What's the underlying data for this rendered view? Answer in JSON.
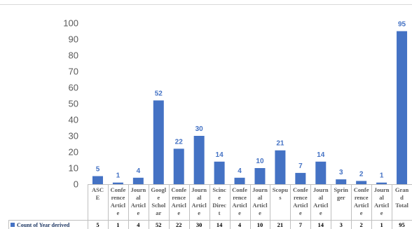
{
  "chart_data": {
    "type": "bar",
    "categories": [
      [
        "ASC",
        "E"
      ],
      [
        "Confe",
        "rence",
        "Articl",
        "e"
      ],
      [
        "Journ",
        "al",
        "Articl",
        "e"
      ],
      [
        "Googl",
        "e",
        "Schol",
        "ar"
      ],
      [
        "Confe",
        "rence",
        "Articl",
        "e"
      ],
      [
        "Journ",
        "al",
        "Articl",
        "e"
      ],
      [
        "Scinc",
        "e",
        "Direc",
        "t"
      ],
      [
        "Confe",
        "rence",
        "Articl",
        "e"
      ],
      [
        "Journ",
        "al",
        "Articl",
        "e"
      ],
      [
        "Scopu",
        "s"
      ],
      [
        "Confe",
        "rence",
        "Articl",
        "e"
      ],
      [
        "Journ",
        "al",
        "Articl",
        "e"
      ],
      [
        "Sprin",
        "ger"
      ],
      [
        "Confe",
        "rence",
        "Articl",
        "e"
      ],
      [
        "Journ",
        "al",
        "Articl",
        "e"
      ],
      [
        "Gran",
        "d",
        "Total"
      ]
    ],
    "series": [
      {
        "name": "Count of Year derived",
        "values": [
          5,
          1,
          4,
          52,
          22,
          30,
          14,
          4,
          10,
          21,
          7,
          14,
          3,
          2,
          1,
          95
        ]
      }
    ],
    "yticks": [
      "100",
      "90",
      "80",
      "70",
      "60",
      "50",
      "40",
      "30",
      "20",
      "10",
      "0"
    ],
    "ylim": [
      0,
      100
    ],
    "grid": false,
    "legend": "bottom-left data table",
    "bar_color": "#4472c4",
    "label_color": "#4472c4"
  }
}
